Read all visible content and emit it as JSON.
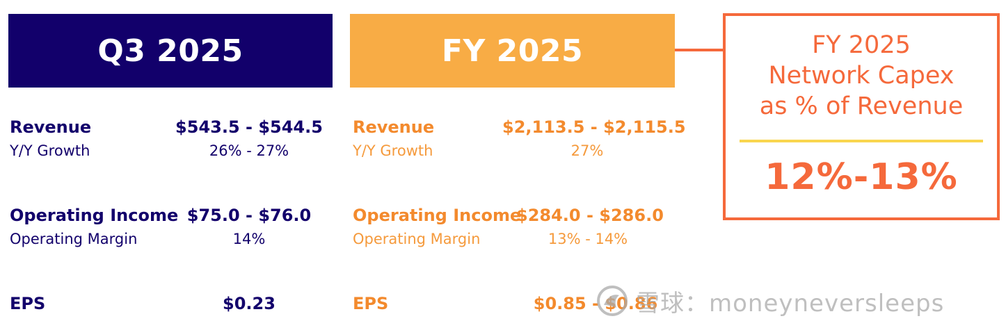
{
  "q3": {
    "header": "Q3 2025",
    "revenue_label": "Revenue",
    "revenue_value": "$543.5 - $544.5",
    "growth_label": "Y/Y Growth",
    "growth_value": "26% - 27%",
    "opinc_label": "Operating Income",
    "opinc_value": "$75.0 - $76.0",
    "margin_label": "Operating Margin",
    "margin_value": "14%",
    "eps_label": "EPS",
    "eps_value": "$0.23"
  },
  "fy": {
    "header": "FY 2025",
    "revenue_label": "Revenue",
    "revenue_value": "$2,113.5 - $2,115.5",
    "growth_label": "Y/Y Growth",
    "growth_value": "27%",
    "opinc_label": "Operating Income",
    "opinc_value": "$284.0 - $286.0",
    "margin_label": "Operating Margin",
    "margin_value": "13% - 14%",
    "eps_label": "EPS",
    "eps_value": "$0.85 - $0.86"
  },
  "capex": {
    "title_line1": "FY 2025",
    "title_line2": "Network Capex",
    "title_line3": "as % of Revenue",
    "value": "12%-13%"
  },
  "watermark": {
    "text": "雪球：moneyneversleeps",
    "icon": "snowball-logo-icon"
  },
  "colors": {
    "navy": "#12006b",
    "amber": "#f8ac45",
    "orange": "#f5693b",
    "divider_yellow": "#f9d64f"
  }
}
